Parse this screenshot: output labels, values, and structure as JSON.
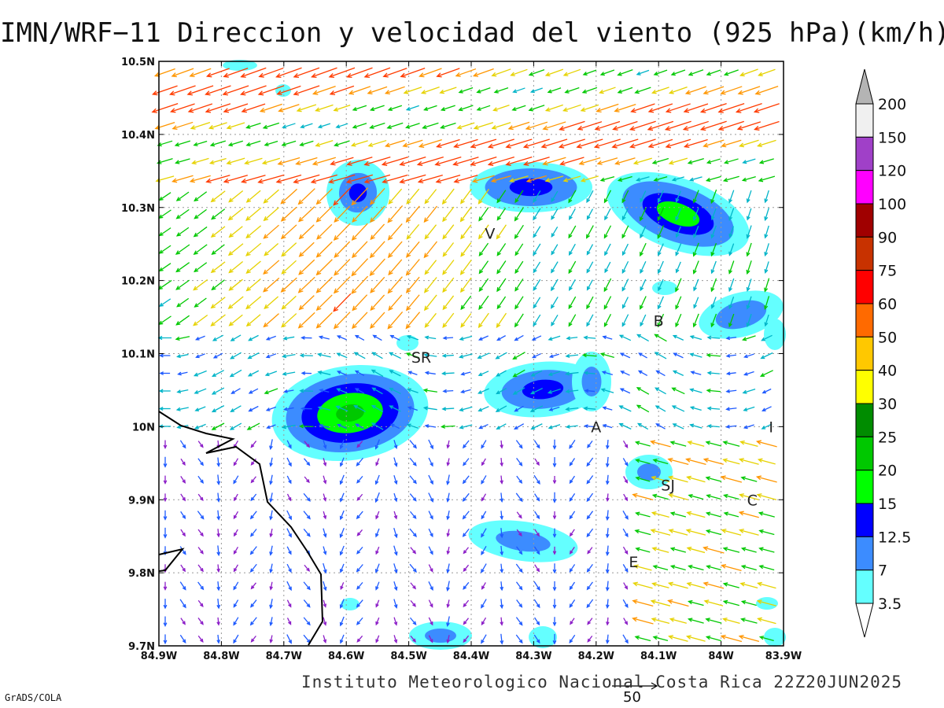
{
  "title": "IMN/WRF−11 Direccion y velocidad del viento (925 hPa)(km/h)",
  "footer": "Instituto Meteorologico Nacional Costa Rica 22Z20JUN2025",
  "software_label": "GrADS/COLA",
  "reference_vector_label": "50",
  "map": {
    "lon_range": [
      -84.9,
      -83.9
    ],
    "lat_range": [
      9.7,
      10.5
    ],
    "x_ticks": [
      "84.9W",
      "84.8W",
      "84.7W",
      "84.6W",
      "84.5W",
      "84.4W",
      "84.3W",
      "84.2W",
      "84.1W",
      "84W",
      "83.9W"
    ],
    "y_ticks": [
      "9.7N",
      "9.8N",
      "9.9N",
      "10N",
      "10.1N",
      "10.2N",
      "10.3N",
      "10.4N",
      "10.5N"
    ],
    "cities": [
      {
        "label": "V",
        "lon": -84.37,
        "lat": 10.265
      },
      {
        "label": "SR",
        "lon": -84.48,
        "lat": 10.095
      },
      {
        "label": "B",
        "lon": -84.1,
        "lat": 10.145
      },
      {
        "label": "A",
        "lon": -84.2,
        "lat": 10.0
      },
      {
        "label": "I",
        "lon": -83.92,
        "lat": 10.0
      },
      {
        "label": "SJ",
        "lon": -84.085,
        "lat": 9.92
      },
      {
        "label": "C",
        "lon": -83.95,
        "lat": 9.9
      },
      {
        "label": "E",
        "lon": -84.14,
        "lat": 9.815
      }
    ]
  },
  "colorbar": {
    "labels": [
      "200",
      "150",
      "120",
      "100",
      "90",
      "75",
      "60",
      "50",
      "40",
      "30",
      "25",
      "20",
      "15",
      "12.5",
      "7",
      "3.5"
    ],
    "colors": [
      "#f0f0f0",
      "#a040c8",
      "#ff00ff",
      "#a00000",
      "#c83200",
      "#ff0000",
      "#ff6a00",
      "#ffc800",
      "#ffff00",
      "#008c00",
      "#00c800",
      "#00ff00",
      "#0000ff",
      "#3c8cff",
      "#64ffff"
    ],
    "over_color": "#b4b4b4"
  }
}
